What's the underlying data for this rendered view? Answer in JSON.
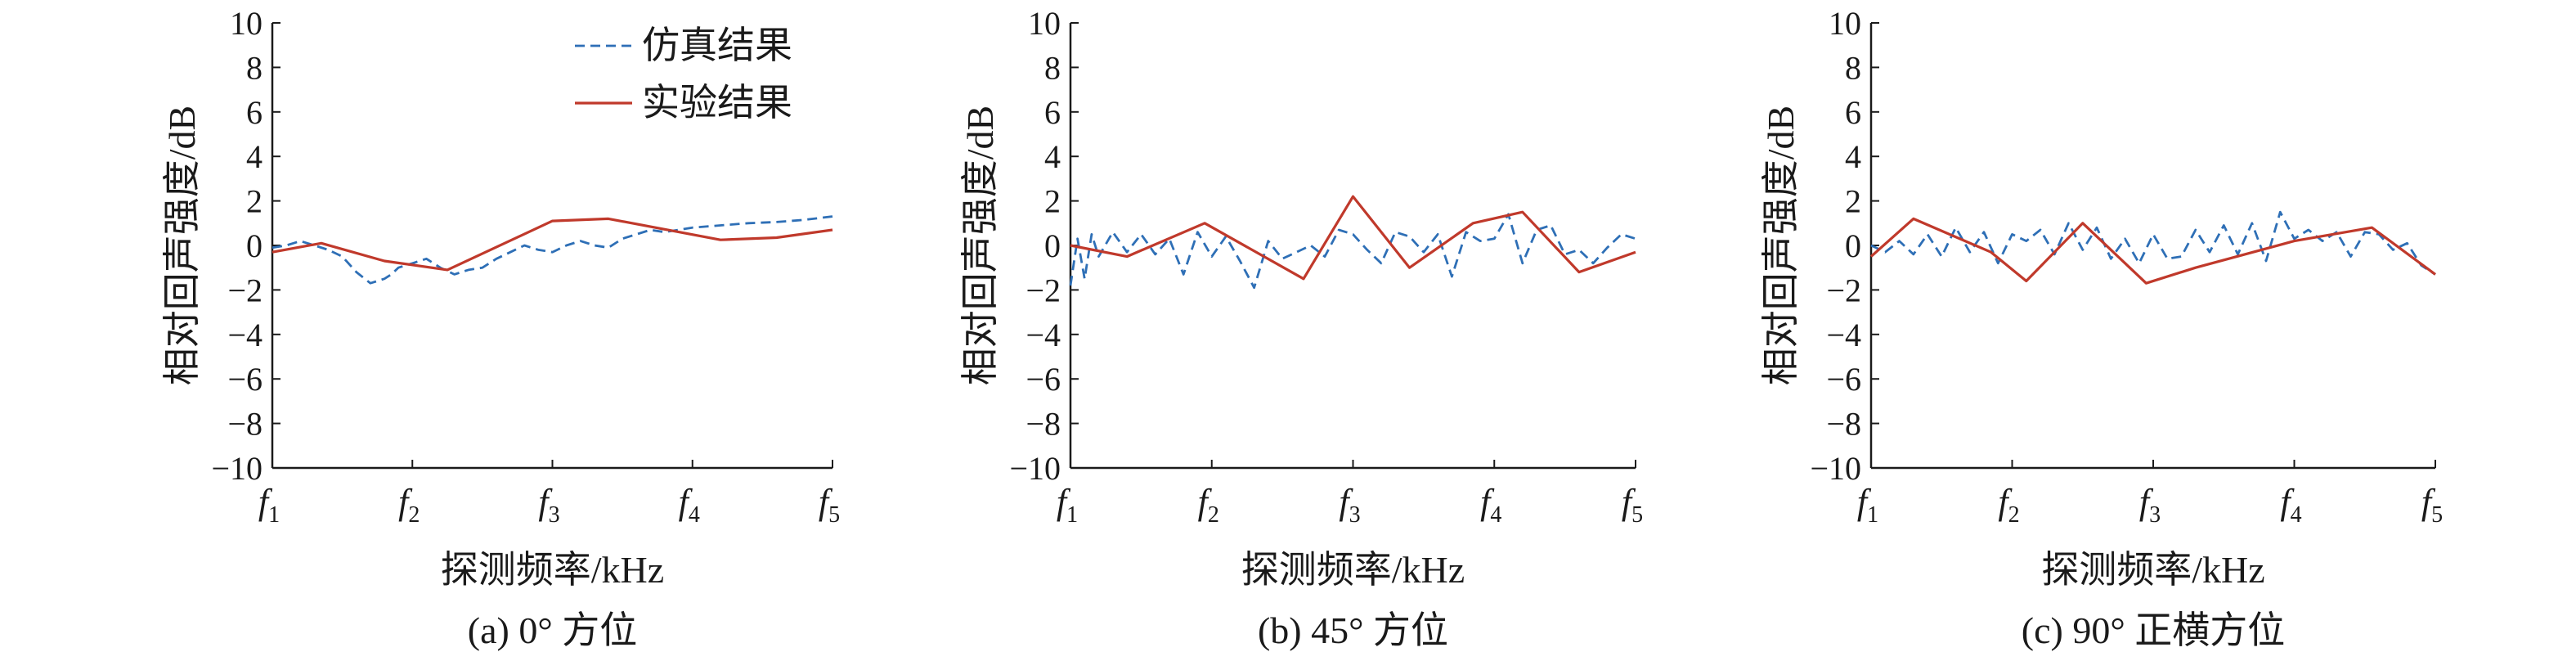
{
  "colors": {
    "sim": "#2e6fb6",
    "exp": "#c0392b",
    "axis": "#1a1a1a"
  },
  "legend": {
    "sim_label": "仿真结果",
    "exp_label": "实验结果"
  },
  "chart_data": [
    {
      "type": "line",
      "caption": "(a) 0° 方位",
      "xlabel": "探测频率/kHz",
      "ylabel": "相对回声强度/dB",
      "ylim": [
        -10,
        10
      ],
      "yticks": [
        10,
        8,
        6,
        4,
        2,
        0,
        -2,
        -4,
        -6,
        -8,
        -10
      ],
      "xticks": [
        {
          "main": "f",
          "sub": "1"
        },
        {
          "main": "f",
          "sub": "2"
        },
        {
          "main": "f",
          "sub": "3"
        },
        {
          "main": "f",
          "sub": "4"
        },
        {
          "main": "f",
          "sub": "5"
        }
      ],
      "xlim": [
        1,
        5
      ],
      "grid": false,
      "legend_position": "top-right",
      "series": [
        {
          "name": "仿真结果",
          "style": "dashed",
          "x": [
            1.0,
            1.1,
            1.2,
            1.3,
            1.4,
            1.5,
            1.6,
            1.7,
            1.8,
            1.85,
            1.9,
            2.0,
            2.1,
            2.2,
            2.3,
            2.4,
            2.5,
            2.6,
            2.7,
            2.8,
            2.9,
            3.0,
            3.1,
            3.2,
            3.3,
            3.4,
            3.5,
            3.6,
            3.7,
            3.8,
            3.9,
            4.0,
            4.2,
            4.4,
            4.6,
            4.8,
            5.0
          ],
          "y": [
            -0.1,
            0.0,
            0.2,
            0.0,
            -0.2,
            -0.5,
            -1.2,
            -1.7,
            -1.5,
            -1.3,
            -1.0,
            -0.8,
            -0.6,
            -1.0,
            -1.3,
            -1.1,
            -1.0,
            -0.6,
            -0.3,
            0.0,
            -0.2,
            -0.3,
            0.0,
            0.2,
            0.0,
            -0.1,
            0.3,
            0.5,
            0.7,
            0.6,
            0.7,
            0.8,
            0.9,
            1.0,
            1.05,
            1.15,
            1.3
          ]
        },
        {
          "name": "实验结果",
          "style": "solid",
          "x": [
            1.0,
            1.35,
            1.8,
            2.25,
            3.0,
            3.4,
            4.2,
            4.6,
            5.0
          ],
          "y": [
            -0.3,
            0.1,
            -0.7,
            -1.1,
            1.1,
            1.2,
            0.25,
            0.35,
            0.7
          ]
        }
      ]
    },
    {
      "type": "line",
      "caption": "(b) 45° 方位",
      "xlabel": "探测频率/kHz",
      "ylabel": "相对回声强度/dB",
      "ylim": [
        -10,
        10
      ],
      "yticks": [
        10,
        8,
        6,
        4,
        2,
        0,
        -2,
        -4,
        -6,
        -8,
        -10
      ],
      "xticks": [
        {
          "main": "f",
          "sub": "1"
        },
        {
          "main": "f",
          "sub": "2"
        },
        {
          "main": "f",
          "sub": "3"
        },
        {
          "main": "f",
          "sub": "4"
        },
        {
          "main": "f",
          "sub": "5"
        }
      ],
      "xlim": [
        1,
        5
      ],
      "grid": false,
      "series": [
        {
          "name": "仿真结果",
          "style": "dashed",
          "x": [
            1.0,
            1.05,
            1.1,
            1.15,
            1.2,
            1.3,
            1.4,
            1.5,
            1.6,
            1.7,
            1.8,
            1.9,
            2.0,
            2.1,
            2.2,
            2.3,
            2.4,
            2.5,
            2.6,
            2.7,
            2.8,
            2.9,
            3.0,
            3.1,
            3.2,
            3.3,
            3.4,
            3.5,
            3.6,
            3.7,
            3.8,
            3.9,
            4.0,
            4.1,
            4.2,
            4.3,
            4.4,
            4.5,
            4.6,
            4.7,
            4.8,
            4.9,
            5.0
          ],
          "y": [
            -1.8,
            0.3,
            -1.5,
            0.5,
            -0.5,
            0.6,
            -0.3,
            0.5,
            -0.4,
            0.3,
            -1.3,
            0.6,
            -0.5,
            0.4,
            -0.7,
            -1.9,
            0.2,
            -0.6,
            -0.3,
            0.0,
            -0.5,
            0.7,
            0.5,
            -0.2,
            -0.8,
            0.6,
            0.4,
            -0.3,
            0.5,
            -1.4,
            0.6,
            0.2,
            0.3,
            1.4,
            -0.8,
            0.7,
            0.9,
            -0.4,
            -0.2,
            -0.8,
            -0.1,
            0.5,
            0.3
          ]
        },
        {
          "name": "实验结果",
          "style": "solid",
          "x": [
            1.0,
            1.4,
            1.95,
            2.65,
            3.0,
            3.4,
            3.85,
            4.2,
            4.6,
            5.0
          ],
          "y": [
            0.0,
            -0.5,
            1.0,
            -1.5,
            2.2,
            -1.0,
            1.0,
            1.5,
            -1.2,
            -0.3
          ]
        }
      ]
    },
    {
      "type": "line",
      "caption": "(c) 90° 正横方位",
      "xlabel": "探测频率/kHz",
      "ylabel": "相对回声强度/dB",
      "ylim": [
        -10,
        10
      ],
      "yticks": [
        10,
        8,
        6,
        4,
        2,
        0,
        -2,
        -4,
        -6,
        -8,
        -10
      ],
      "xticks": [
        {
          "main": "f",
          "sub": "1"
        },
        {
          "main": "f",
          "sub": "2"
        },
        {
          "main": "f",
          "sub": "3"
        },
        {
          "main": "f",
          "sub": "4"
        },
        {
          "main": "f",
          "sub": "5"
        }
      ],
      "xlim": [
        1,
        5
      ],
      "grid": false,
      "series": [
        {
          "name": "仿真结果",
          "style": "dashed",
          "x": [
            1.0,
            1.1,
            1.2,
            1.3,
            1.4,
            1.5,
            1.6,
            1.7,
            1.8,
            1.9,
            2.0,
            2.1,
            2.2,
            2.3,
            2.4,
            2.5,
            2.6,
            2.7,
            2.8,
            2.9,
            3.0,
            3.1,
            3.2,
            3.3,
            3.4,
            3.5,
            3.6,
            3.7,
            3.8,
            3.9,
            4.0,
            4.1,
            4.2,
            4.3,
            4.4,
            4.5,
            4.6,
            4.7,
            4.8,
            4.9,
            5.0
          ],
          "y": [
            0.0,
            -0.3,
            0.2,
            -0.4,
            0.5,
            -0.5,
            0.8,
            -0.3,
            0.6,
            -0.8,
            0.5,
            0.2,
            0.7,
            -0.4,
            1.0,
            -0.2,
            0.8,
            -0.6,
            0.3,
            -0.8,
            0.5,
            -0.6,
            -0.5,
            0.7,
            -0.3,
            0.9,
            -0.4,
            1.0,
            -0.7,
            1.5,
            0.3,
            0.7,
            0.2,
            0.6,
            -0.5,
            0.6,
            0.5,
            -0.2,
            0.1,
            -0.9,
            -1.3
          ]
        },
        {
          "name": "实验结果",
          "style": "solid",
          "x": [
            1.0,
            1.3,
            1.85,
            2.1,
            2.5,
            2.95,
            3.3,
            4.0,
            4.55,
            5.0
          ],
          "y": [
            -0.5,
            1.2,
            -0.3,
            -1.6,
            1.0,
            -1.7,
            -1.0,
            0.2,
            0.8,
            -1.3
          ]
        }
      ]
    }
  ]
}
